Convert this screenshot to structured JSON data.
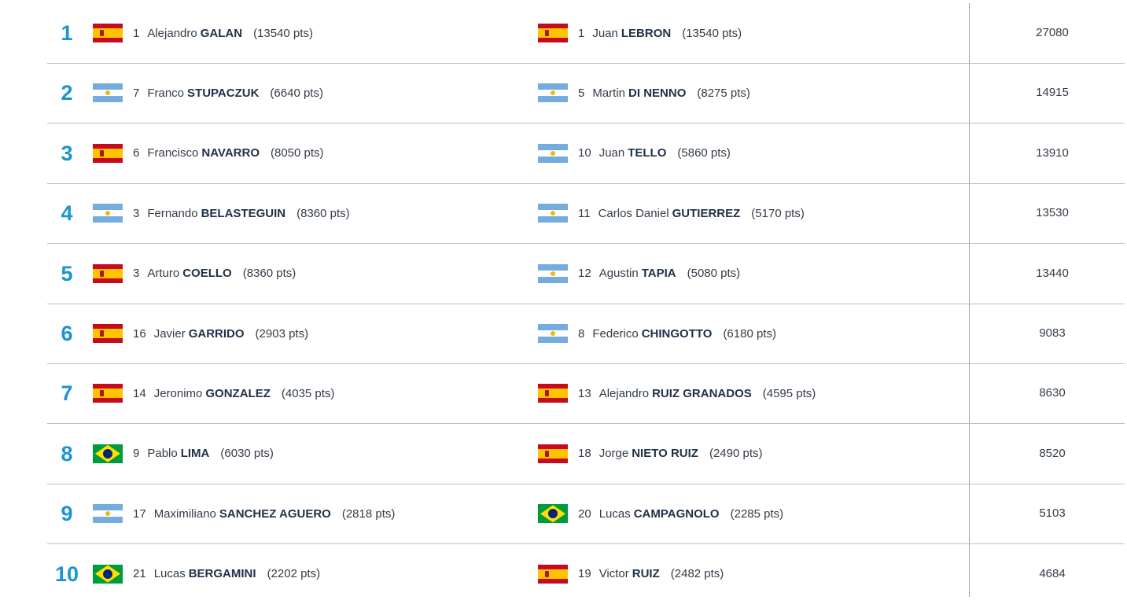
{
  "rows": [
    {
      "rank": "1",
      "total": "27080",
      "p1": {
        "flag": "es",
        "flag_icon": "spain-flag-icon",
        "seed": "1",
        "first": "Alejandro",
        "last": "GALAN",
        "pts": "(13540 pts)"
      },
      "p2": {
        "flag": "es",
        "flag_icon": "spain-flag-icon",
        "seed": "1",
        "first": "Juan",
        "last": "LEBRON",
        "pts": "(13540 pts)"
      }
    },
    {
      "rank": "2",
      "total": "14915",
      "p1": {
        "flag": "ar",
        "flag_icon": "argentina-flag-icon",
        "seed": "7",
        "first": "Franco",
        "last": "STUPACZUK",
        "pts": "(6640 pts)"
      },
      "p2": {
        "flag": "ar",
        "flag_icon": "argentina-flag-icon",
        "seed": "5",
        "first": "Martin",
        "last": "DI NENNO",
        "pts": "(8275 pts)"
      }
    },
    {
      "rank": "3",
      "total": "13910",
      "p1": {
        "flag": "es",
        "flag_icon": "spain-flag-icon",
        "seed": "6",
        "first": "Francisco",
        "last": "NAVARRO",
        "pts": "(8050 pts)"
      },
      "p2": {
        "flag": "ar",
        "flag_icon": "argentina-flag-icon",
        "seed": "10",
        "first": "Juan",
        "last": "TELLO",
        "pts": "(5860 pts)"
      }
    },
    {
      "rank": "4",
      "total": "13530",
      "p1": {
        "flag": "ar",
        "flag_icon": "argentina-flag-icon",
        "seed": "3",
        "first": "Fernando",
        "last": "BELASTEGUIN",
        "pts": "(8360 pts)"
      },
      "p2": {
        "flag": "ar",
        "flag_icon": "argentina-flag-icon",
        "seed": "11",
        "first": "Carlos Daniel",
        "last": "GUTIERREZ",
        "pts": "(5170 pts)"
      }
    },
    {
      "rank": "5",
      "total": "13440",
      "p1": {
        "flag": "es",
        "flag_icon": "spain-flag-icon",
        "seed": "3",
        "first": "Arturo",
        "last": "COELLO",
        "pts": "(8360 pts)"
      },
      "p2": {
        "flag": "ar",
        "flag_icon": "argentina-flag-icon",
        "seed": "12",
        "first": "Agustin",
        "last": "TAPIA",
        "pts": "(5080 pts)"
      }
    },
    {
      "rank": "6",
      "total": "9083",
      "p1": {
        "flag": "es",
        "flag_icon": "spain-flag-icon",
        "seed": "16",
        "first": "Javier",
        "last": "GARRIDO",
        "pts": "(2903 pts)"
      },
      "p2": {
        "flag": "ar",
        "flag_icon": "argentina-flag-icon",
        "seed": "8",
        "first": "Federico",
        "last": "CHINGOTTO",
        "pts": "(6180 pts)"
      }
    },
    {
      "rank": "7",
      "total": "8630",
      "p1": {
        "flag": "es",
        "flag_icon": "spain-flag-icon",
        "seed": "14",
        "first": "Jeronimo",
        "last": "GONZALEZ",
        "pts": "(4035 pts)"
      },
      "p2": {
        "flag": "es",
        "flag_icon": "spain-flag-icon",
        "seed": "13",
        "first": "Alejandro",
        "last": "RUIZ GRANADOS",
        "pts": "(4595 pts)"
      }
    },
    {
      "rank": "8",
      "total": "8520",
      "p1": {
        "flag": "br",
        "flag_icon": "brazil-flag-icon",
        "seed": "9",
        "first": "Pablo",
        "last": "LIMA",
        "pts": "(6030 pts)"
      },
      "p2": {
        "flag": "es",
        "flag_icon": "spain-flag-icon",
        "seed": "18",
        "first": "Jorge",
        "last": "NIETO RUIZ",
        "pts": "(2490 pts)"
      }
    },
    {
      "rank": "9",
      "total": "5103",
      "p1": {
        "flag": "ar",
        "flag_icon": "argentina-flag-icon",
        "seed": "17",
        "first": "Maximiliano",
        "last": "SANCHEZ AGUERO",
        "pts": "(2818 pts)"
      },
      "p2": {
        "flag": "br",
        "flag_icon": "brazil-flag-icon",
        "seed": "20",
        "first": "Lucas",
        "last": "CAMPAGNOLO",
        "pts": "(2285 pts)"
      }
    },
    {
      "rank": "10",
      "total": "4684",
      "p1": {
        "flag": "br",
        "flag_icon": "brazil-flag-icon",
        "seed": "21",
        "first": "Lucas",
        "last": "BERGAMINI",
        "pts": "(2202 pts)"
      },
      "p2": {
        "flag": "es",
        "flag_icon": "spain-flag-icon",
        "seed": "19",
        "first": "Victor",
        "last": "RUIZ",
        "pts": "(2482 pts)"
      }
    }
  ]
}
